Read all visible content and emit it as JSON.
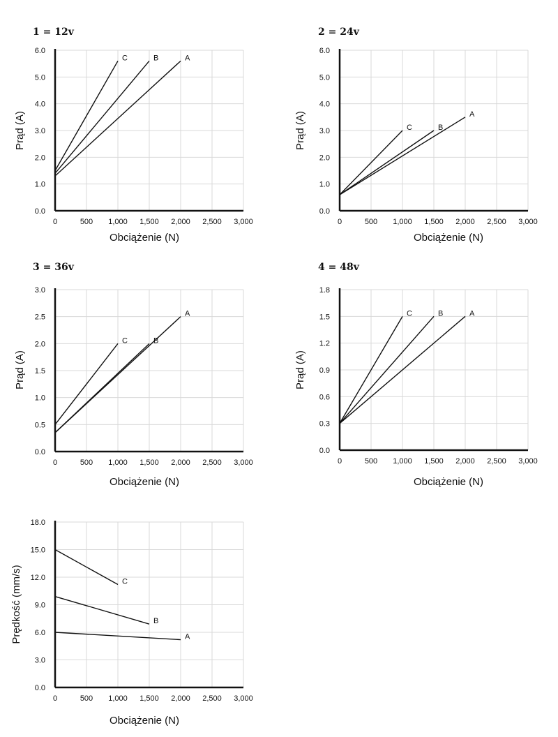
{
  "chart_data": [
    {
      "type": "line",
      "title": "1 = 12v",
      "xlabel": "Obciążenie (N)",
      "ylabel": "Prąd (A)",
      "xlim": [
        0,
        3000
      ],
      "ylim": [
        0,
        6
      ],
      "x_ticks": [
        "0",
        "500",
        "1,000",
        "1,500",
        "2,000",
        "2,500",
        "3,000"
      ],
      "y_ticks": [
        "0.0",
        "1.0",
        "2.0",
        "3.0",
        "4.0",
        "5.0",
        "6.0"
      ],
      "grid": true,
      "series": [
        {
          "name": "A",
          "x": [
            0,
            2000
          ],
          "y": [
            1.3,
            5.6
          ]
        },
        {
          "name": "B",
          "x": [
            0,
            1500
          ],
          "y": [
            1.4,
            5.6
          ]
        },
        {
          "name": "C",
          "x": [
            0,
            1000
          ],
          "y": [
            1.5,
            5.6
          ]
        }
      ]
    },
    {
      "type": "line",
      "title": "2 = 24v",
      "xlabel": "Obciążenie (N)",
      "ylabel": "Prąd (A)",
      "xlim": [
        0,
        3000
      ],
      "ylim": [
        0,
        6
      ],
      "x_ticks": [
        "0",
        "500",
        "1,000",
        "1,500",
        "2,000",
        "2,500",
        "3,000"
      ],
      "y_ticks": [
        "0.0",
        "1.0",
        "2.0",
        "3.0",
        "4.0",
        "5.0",
        "6.0"
      ],
      "grid": true,
      "series": [
        {
          "name": "A",
          "x": [
            0,
            2000
          ],
          "y": [
            0.6,
            3.5
          ]
        },
        {
          "name": "B",
          "x": [
            0,
            1500
          ],
          "y": [
            0.6,
            3.0
          ]
        },
        {
          "name": "C",
          "x": [
            0,
            1000
          ],
          "y": [
            0.6,
            3.0
          ]
        }
      ]
    },
    {
      "type": "line",
      "title": "3 = 36v",
      "xlabel": "Obciążenie (N)",
      "ylabel": "Prąd (A)",
      "xlim": [
        0,
        3000
      ],
      "ylim": [
        0,
        3
      ],
      "x_ticks": [
        "0",
        "500",
        "1,000",
        "1,500",
        "2,000",
        "2,500",
        "3,000"
      ],
      "y_ticks": [
        "0.0",
        "0.5",
        "1.0",
        "1.5",
        "2.0",
        "2.5",
        "3.0"
      ],
      "grid": true,
      "series": [
        {
          "name": "A",
          "x": [
            0,
            2000
          ],
          "y": [
            0.35,
            2.5
          ]
        },
        {
          "name": "B",
          "x": [
            0,
            1500
          ],
          "y": [
            0.35,
            2.0
          ]
        },
        {
          "name": "C",
          "x": [
            0,
            1000
          ],
          "y": [
            0.5,
            2.0
          ]
        }
      ]
    },
    {
      "type": "line",
      "title": "4 = 48v",
      "xlabel": "Obciążenie (N)",
      "ylabel": "Prąd (A)",
      "xlim": [
        0,
        3000
      ],
      "ylim": [
        0,
        1.8
      ],
      "x_ticks": [
        "0",
        "500",
        "1,000",
        "1,500",
        "2,000",
        "2,500",
        "3,000"
      ],
      "y_ticks": [
        "0.0",
        "0.3",
        "0.6",
        "0.9",
        "1.2",
        "1.5",
        "1.8"
      ],
      "grid": true,
      "series": [
        {
          "name": "A",
          "x": [
            0,
            2000
          ],
          "y": [
            0.3,
            1.5
          ]
        },
        {
          "name": "B",
          "x": [
            0,
            1500
          ],
          "y": [
            0.3,
            1.5
          ]
        },
        {
          "name": "C",
          "x": [
            0,
            1000
          ],
          "y": [
            0.3,
            1.5
          ]
        }
      ]
    },
    {
      "type": "line",
      "title": "",
      "xlabel": "Obciążenie (N)",
      "ylabel": "Prędkość (mm/s)",
      "xlim": [
        0,
        3000
      ],
      "ylim": [
        0,
        18
      ],
      "x_ticks": [
        "0",
        "500",
        "1,000",
        "1,500",
        "2,000",
        "2,500",
        "3,000"
      ],
      "y_ticks": [
        "0.0",
        "3.0",
        "6.0",
        "9.0",
        "12.0",
        "15.0",
        "18.0"
      ],
      "grid": true,
      "series": [
        {
          "name": "A",
          "x": [
            0,
            2000
          ],
          "y": [
            6.0,
            5.2
          ]
        },
        {
          "name": "B",
          "x": [
            0,
            1500
          ],
          "y": [
            9.9,
            6.9
          ]
        },
        {
          "name": "C",
          "x": [
            0,
            1000
          ],
          "y": [
            15.0,
            11.2
          ]
        }
      ]
    }
  ]
}
